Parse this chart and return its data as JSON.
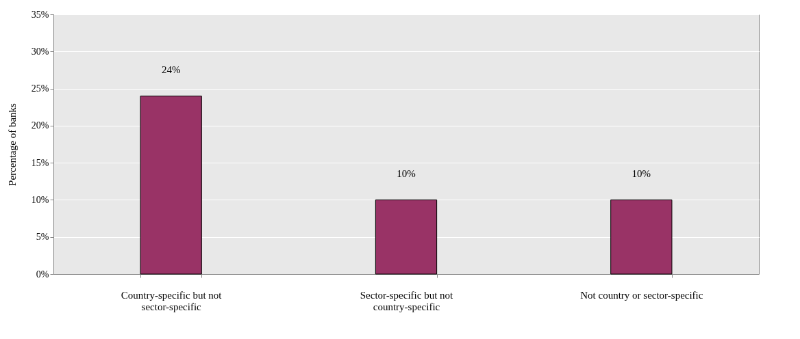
{
  "chart_data": {
    "type": "bar",
    "ylabel": "Percentage of banks",
    "categories": [
      "Country-specific but not sector-specific",
      "Sector-specific but not country-specific",
      "Not country or sector-specific"
    ],
    "values": [
      24,
      10,
      10
    ],
    "color": "#993366",
    "value_labels": [
      "24%",
      "10%",
      "10%"
    ],
    "ylim": [
      0,
      35
    ],
    "yticks": [
      {
        "value": 0,
        "label": "0%"
      },
      {
        "value": 5,
        "label": "5%"
      },
      {
        "value": 10,
        "label": "10%"
      },
      {
        "value": 15,
        "label": "15%"
      },
      {
        "value": 20,
        "label": "20%"
      },
      {
        "value": 25,
        "label": "25%"
      },
      {
        "value": 30,
        "label": "30%"
      },
      {
        "value": 35,
        "label": "35%"
      }
    ],
    "grid": "y"
  }
}
